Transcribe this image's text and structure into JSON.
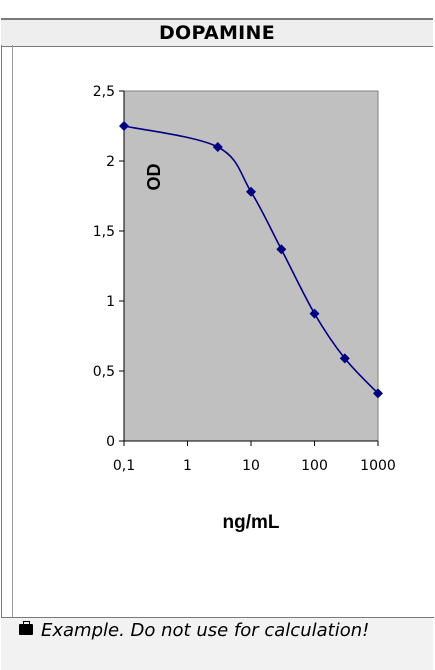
{
  "title": "DOPAMINE",
  "footer": {
    "text": "Example. Do not use for calculation!",
    "icon": "briefcase-icon"
  },
  "colors": {
    "plot_bg": "#c0c0c0",
    "series": "#000080",
    "title_bg": "#eeeeee"
  },
  "chart_data": {
    "type": "line",
    "xlabel": "ng/mL",
    "ylabel": "OD",
    "xscale": "log",
    "xlim": [
      0.1,
      1000
    ],
    "ylim": [
      0,
      2.5
    ],
    "xticks": [
      0.1,
      1,
      10,
      100,
      1000
    ],
    "xtick_labels": [
      "0,1",
      "1",
      "10",
      "100",
      "1000"
    ],
    "yticks": [
      0,
      0.5,
      1,
      1.5,
      2,
      2.5
    ],
    "ytick_labels": [
      "0",
      "0,5",
      "1",
      "1,5",
      "2",
      "2,5"
    ],
    "grid": false,
    "series": [
      {
        "x": [
          0.1,
          3,
          10,
          30,
          100,
          300,
          1000
        ],
        "y": [
          2.25,
          2.1,
          1.78,
          1.37,
          0.91,
          0.59,
          0.34
        ],
        "marker": "diamond",
        "smooth": true
      }
    ]
  }
}
